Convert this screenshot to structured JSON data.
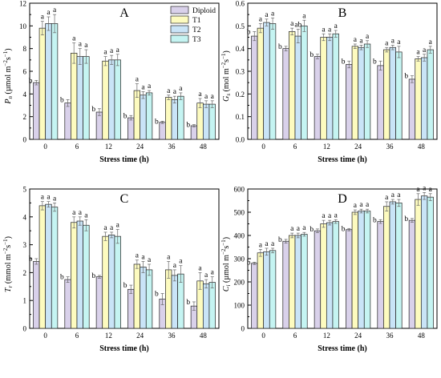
{
  "chart_data": [
    {
      "type": "bar",
      "panel_label": "A",
      "categories": [
        "0",
        "6",
        "12",
        "24",
        "36",
        "48"
      ],
      "xlabel": "Stress time (h)",
      "ylabel": "P_n (µmol m^-2 s^-1)",
      "ylabel_parts": {
        "main": "P",
        "sub": "n",
        "unit": "(µmol m",
        "exp1": "−2",
        "mid": "s",
        "exp2": "−1",
        "close": ")"
      },
      "ylim": [
        0,
        12
      ],
      "yticks": [
        "0",
        "2",
        "4",
        "6",
        "8",
        "10",
        "12"
      ],
      "series": [
        {
          "name": "Diploid",
          "values": [
            5.0,
            3.2,
            2.4,
            1.9,
            1.5,
            1.2
          ],
          "errors": [
            0.2,
            0.3,
            0.3,
            0.2,
            0.1,
            0.1
          ],
          "letters": [
            "b",
            "b",
            "b",
            "b",
            "b",
            "b"
          ]
        },
        {
          "name": "T1",
          "values": [
            9.8,
            7.6,
            6.9,
            4.3,
            3.7,
            3.2
          ],
          "errors": [
            0.6,
            0.9,
            0.4,
            0.6,
            0.2,
            0.4
          ],
          "letters": [
            "a",
            "a",
            "a",
            "a",
            "a",
            "a"
          ]
        },
        {
          "name": "T2",
          "values": [
            10.2,
            7.3,
            7.0,
            3.9,
            3.5,
            3.1
          ],
          "errors": [
            0.6,
            0.7,
            0.4,
            0.3,
            0.3,
            0.3
          ],
          "letters": [
            "a",
            "a",
            "a",
            "a",
            "a",
            "a"
          ]
        },
        {
          "name": "T3",
          "values": [
            10.2,
            7.3,
            7.0,
            4.1,
            3.8,
            3.1
          ],
          "errors": [
            0.8,
            0.6,
            0.5,
            0.2,
            0.3,
            0.3
          ],
          "letters": [
            "a",
            "a",
            "a",
            "a",
            "a",
            "a"
          ]
        }
      ],
      "legend": [
        "Diploid",
        "T1",
        "T2",
        "T3"
      ],
      "legend_position": "top-right"
    },
    {
      "type": "bar",
      "panel_label": "B",
      "categories": [
        "0",
        "6",
        "12",
        "24",
        "36",
        "48"
      ],
      "xlabel": "Stress time (h)",
      "ylabel": "G_s (mol m^-2 s^-1)",
      "ylabel_parts": {
        "main": "G",
        "sub": "s",
        "unit": "(mol m",
        "exp1": "−2",
        "mid": "s",
        "exp2": "−1",
        "close": ")"
      },
      "ylim": [
        0,
        0.6
      ],
      "yticks": [
        "0.0",
        "0.1",
        "0.2",
        "0.3",
        "0.4",
        "0.5",
        "0.6"
      ],
      "series": [
        {
          "name": "Diploid",
          "values": [
            0.455,
            0.4,
            0.365,
            0.33,
            0.325,
            0.265
          ],
          "errors": [
            0.02,
            0.01,
            0.01,
            0.015,
            0.02,
            0.015
          ],
          "letters": [
            "b",
            "b",
            "b",
            "b",
            "b",
            "b"
          ]
        },
        {
          "name": "T1",
          "values": [
            0.49,
            0.475,
            0.45,
            0.41,
            0.395,
            0.355
          ],
          "errors": [
            0.02,
            0.015,
            0.015,
            0.01,
            0.01,
            0.01
          ],
          "letters": [
            "a",
            "a",
            "a",
            "a",
            "a",
            "a"
          ]
        },
        {
          "name": "T2",
          "values": [
            0.515,
            0.455,
            0.45,
            0.405,
            0.405,
            0.36
          ],
          "errors": [
            0.015,
            0.03,
            0.015,
            0.01,
            0.01,
            0.015
          ],
          "letters": [
            "a",
            "ab",
            "a",
            "a",
            "a",
            "a"
          ]
        },
        {
          "name": "T3",
          "values": [
            0.51,
            0.5,
            0.465,
            0.42,
            0.385,
            0.395
          ],
          "errors": [
            0.025,
            0.025,
            0.015,
            0.015,
            0.025,
            0.015
          ],
          "letters": [
            "a",
            "a",
            "a",
            "a",
            "a",
            "a"
          ]
        }
      ]
    },
    {
      "type": "bar",
      "panel_label": "C",
      "categories": [
        "0",
        "6",
        "12",
        "24",
        "36",
        "48"
      ],
      "xlabel": "Stress time (h)",
      "ylabel": "T_r (mmol m^-2 s^-1)",
      "ylabel_parts": {
        "main": "T",
        "sub": "r",
        "unit": "(mmol m",
        "exp1": "−2",
        "mid": "s",
        "exp2": "−1",
        "close": ")"
      },
      "ylim": [
        0,
        5
      ],
      "yticks": [
        "0",
        "1",
        "2",
        "3",
        "4",
        "5"
      ],
      "series": [
        {
          "name": "Diploid",
          "values": [
            2.4,
            1.75,
            1.85,
            1.4,
            1.05,
            0.8
          ],
          "errors": [
            0.1,
            0.1,
            0.05,
            0.15,
            0.2,
            0.15
          ],
          "letters": [
            "b",
            "b",
            "b",
            "b",
            "b",
            "b"
          ]
        },
        {
          "name": "T1",
          "values": [
            4.4,
            3.8,
            3.3,
            2.3,
            2.1,
            1.7
          ],
          "errors": [
            0.15,
            0.2,
            0.15,
            0.15,
            0.3,
            0.3
          ],
          "letters": [
            "a",
            "a",
            "a",
            "a",
            "a",
            "a"
          ]
        },
        {
          "name": "T2",
          "values": [
            4.45,
            3.85,
            3.35,
            2.2,
            1.9,
            1.6
          ],
          "errors": [
            0.1,
            0.15,
            0.1,
            0.2,
            0.2,
            0.15
          ],
          "letters": [
            "a",
            "a",
            "a",
            "a",
            "a",
            "a"
          ]
        },
        {
          "name": "T3",
          "values": [
            4.35,
            3.7,
            3.3,
            2.1,
            1.95,
            1.65
          ],
          "errors": [
            0.15,
            0.2,
            0.25,
            0.2,
            0.3,
            0.2
          ],
          "letters": [
            "a",
            "a",
            "a",
            "a",
            "a",
            "a"
          ]
        }
      ]
    },
    {
      "type": "bar",
      "panel_label": "D",
      "categories": [
        "0",
        "6",
        "12",
        "24",
        "36",
        "48"
      ],
      "xlabel": "Stress time (h)",
      "ylabel": "C_i (µmol m^-2 s^-1)",
      "ylabel_parts": {
        "main": "C",
        "sub": "i",
        "unit": "(µmol m",
        "exp1": "−2",
        "mid": "s",
        "exp2": "−1",
        "close": ")"
      },
      "ylim": [
        0,
        600
      ],
      "yticks": [
        "0",
        "100",
        "200",
        "300",
        "400",
        "500",
        "600"
      ],
      "series": [
        {
          "name": "Diploid",
          "values": [
            280,
            375,
            420,
            425,
            460,
            465
          ],
          "errors": [
            5,
            8,
            8,
            5,
            8,
            8
          ],
          "letters": [
            "b",
            "b",
            "b",
            "b",
            "b",
            "b"
          ]
        },
        {
          "name": "T1",
          "values": [
            325,
            400,
            450,
            500,
            525,
            555
          ],
          "errors": [
            15,
            10,
            15,
            10,
            20,
            25
          ],
          "letters": [
            "a",
            "a",
            "a",
            "a",
            "a",
            "a"
          ]
        },
        {
          "name": "T2",
          "values": [
            330,
            400,
            455,
            505,
            545,
            570
          ],
          "errors": [
            15,
            10,
            10,
            8,
            10,
            15
          ],
          "letters": [
            "a",
            "a",
            "a",
            "a",
            "a",
            "a"
          ]
        },
        {
          "name": "T3",
          "values": [
            335,
            405,
            460,
            505,
            540,
            565
          ],
          "errors": [
            10,
            8,
            8,
            8,
            15,
            15
          ],
          "letters": [
            "a",
            "a",
            "a",
            "a",
            "a",
            "a"
          ]
        }
      ]
    }
  ],
  "colors": {
    "Diploid": "#d9d1ea",
    "T1": "#fdfbbf",
    "T2": "#c9e4f7",
    "T3": "#c5f4f2",
    "stroke": "#222222",
    "errorbar": "#666666"
  }
}
